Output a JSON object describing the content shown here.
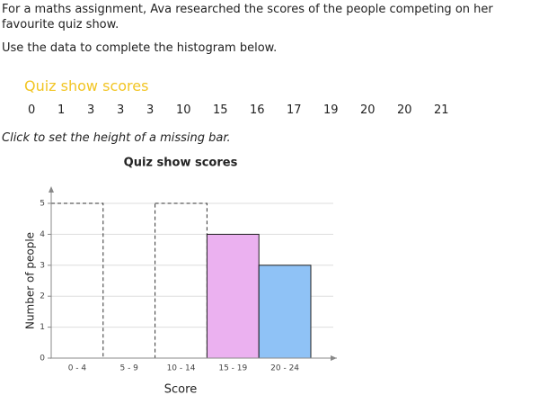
{
  "intro": "For a maths assignment, Ava researched the scores of the people competing on her favourite quiz show.",
  "task": "Use the data to complete the histogram below.",
  "data_title": "Quiz show scores",
  "scores": [
    0,
    1,
    3,
    3,
    3,
    10,
    15,
    16,
    17,
    19,
    20,
    20,
    21
  ],
  "instruction": "Click to set the height of a missing bar.",
  "chart_data": {
    "type": "histogram",
    "title": "Quiz show scores",
    "x_label": "Score",
    "y_label": "Number of people",
    "categories": [
      "0 - 4",
      "5 - 9",
      "10 - 14",
      "15 - 19",
      "20 - 24"
    ],
    "values": [
      null,
      0,
      null,
      4,
      3
    ],
    "colors": [
      null,
      "#333333",
      null,
      "#ebb1f0",
      "#8fc2f6"
    ],
    "ylim": [
      0,
      5
    ],
    "yticks": [
      0,
      1,
      2,
      3,
      4,
      5
    ],
    "grid": true
  }
}
